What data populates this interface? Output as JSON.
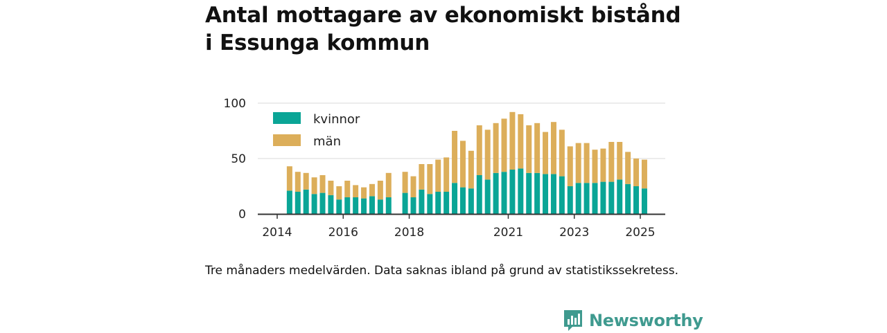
{
  "title": "Antal mottagare av ekonomiskt bistånd i Essunga kommun",
  "note": "Tre månaders medelvärden. Data saknas ibland på grund av statistikssekretess.",
  "brand": "Newsworthy",
  "colors": {
    "women": "#0aa596",
    "men": "#dcae5a",
    "grid": "#d9d9d9",
    "axis": "#333333",
    "brand": "#3f9a8f"
  },
  "chart_data": {
    "type": "bar",
    "stacked": true,
    "legend_position": "top-left",
    "ylim": [
      0,
      100
    ],
    "yticks": [
      0,
      50,
      100
    ],
    "xticks": [
      {
        "label": "2014",
        "pos": 2014.0
      },
      {
        "label": "2016",
        "pos": 2016.0
      },
      {
        "label": "2018",
        "pos": 2018.0
      },
      {
        "label": "2021",
        "pos": 2021.0
      },
      {
        "label": "2023",
        "pos": 2023.0
      },
      {
        "label": "2025",
        "pos": 2025.0
      }
    ],
    "x": [
      2014.375,
      2014.625,
      2014.875,
      2015.125,
      2015.375,
      2015.625,
      2015.875,
      2016.125,
      2016.375,
      2016.625,
      2016.875,
      2017.125,
      2017.375,
      2017.875,
      2018.125,
      2018.375,
      2018.625,
      2018.875,
      2019.125,
      2019.375,
      2019.625,
      2019.875,
      2020.125,
      2020.375,
      2020.625,
      2020.875,
      2021.125,
      2021.375,
      2021.625,
      2021.875,
      2022.125,
      2022.375,
      2022.625,
      2022.875,
      2023.125,
      2023.375,
      2023.625,
      2023.875,
      2024.125,
      2024.375,
      2024.625,
      2024.875,
      2025.125
    ],
    "series": [
      {
        "name": "kvinnor",
        "color": "#0aa596",
        "values": [
          21,
          20,
          22,
          18,
          19,
          17,
          13,
          15,
          15,
          14,
          16,
          13,
          15,
          19,
          15,
          22,
          18,
          20,
          20,
          28,
          24,
          23,
          35,
          31,
          37,
          38,
          40,
          41,
          37,
          37,
          36,
          36,
          34,
          25,
          28,
          28,
          28,
          29,
          29,
          31,
          27,
          25,
          23
        ]
      },
      {
        "name": "män",
        "color": "#dcae5a",
        "values": [
          22,
          18,
          15,
          15,
          16,
          13,
          12,
          15,
          11,
          10,
          11,
          17,
          22,
          19,
          19,
          23,
          27,
          29,
          31,
          47,
          42,
          34,
          45,
          45,
          45,
          48,
          52,
          49,
          43,
          45,
          38,
          47,
          42,
          36,
          36,
          36,
          30,
          30,
          36,
          34,
          29,
          25,
          26
        ]
      }
    ]
  }
}
